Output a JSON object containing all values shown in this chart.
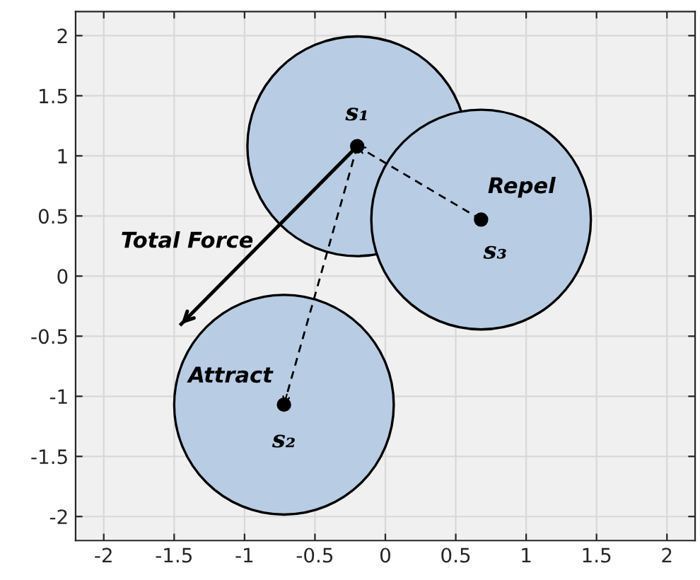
{
  "chart_data": {
    "type": "scatter",
    "xlim": [
      -2.2,
      2.2
    ],
    "ylim": [
      -2.2,
      2.2
    ],
    "xticks": [
      -2,
      -1.5,
      -1,
      -0.5,
      0,
      0.5,
      1,
      1.5,
      2
    ],
    "yticks": [
      -2,
      -1.5,
      -1,
      -0.5,
      0,
      0.5,
      1,
      1.5,
      2
    ],
    "grid": true,
    "series": [
      {
        "type": "bubble",
        "color": "#b8cce4",
        "x": [
          -0.2,
          -0.72,
          0.68
        ],
        "values": [
          1.08,
          -1.07,
          0.47
        ],
        "sizes": [
          1,
          1,
          1
        ]
      },
      {
        "color": "#000000",
        "marker": "circle",
        "x": [
          -0.2,
          -0.72,
          0.68
        ],
        "values": [
          1.08,
          -1.07,
          0.47
        ]
      },
      {
        "type": "line",
        "color": "#000000",
        "line_style": "solid",
        "x": [
          -0.2,
          -1.45
        ],
        "values": [
          1.08,
          -0.4
        ]
      },
      {
        "type": "line",
        "color": "#000000",
        "line_style": "dashed",
        "x": [
          -0.2,
          -0.72
        ],
        "values": [
          1.08,
          -1.07
        ]
      },
      {
        "type": "line",
        "color": "#000000",
        "line_style": "dashed",
        "x": [
          0.68,
          -0.2
        ],
        "values": [
          0.47,
          1.08
        ]
      }
    ],
    "annotations": [
      {
        "text": "s₁",
        "x": -0.2,
        "y": 1.08
      },
      {
        "text": "s₂",
        "x": -0.72,
        "y": -1.07
      },
      {
        "text": "s₃",
        "x": 0.68,
        "y": 0.47
      },
      "Total Force",
      "Attract",
      "Repel"
    ]
  }
}
